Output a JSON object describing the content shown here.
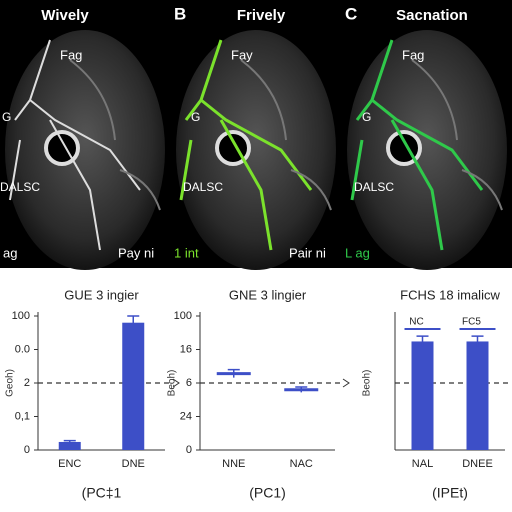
{
  "panels": [
    {
      "title": "Wively",
      "label_top": "Fag",
      "label_g": "G",
      "label_mid": "DALSC",
      "label_left": "ag",
      "label_right": "Pay ni"
    },
    {
      "letter": "B",
      "title": "Frively",
      "label_top": "Fay",
      "label_g": "G",
      "label_mid": "DALSC",
      "label_left": "1 int",
      "label_right": "Pair ni"
    },
    {
      "letter": "C",
      "title": "Sacnation",
      "label_top": "Fag",
      "label_g": "G",
      "label_mid": "DALSC",
      "label_left": "L ag",
      "label_right": ""
    }
  ],
  "chart_data": [
    {
      "type": "bar",
      "title": "GUE 3 ingier",
      "ylabel": "Geoh)",
      "xlabel": "(PC‡1",
      "categories": [
        "ENC",
        "DNE"
      ],
      "values": [
        6,
        95
      ],
      "errors": [
        1,
        5
      ],
      "color": "#3d4fc7",
      "ylim": [
        0,
        100
      ],
      "yticks": [
        0,
        {
          "value": 25,
          "label": "0,1"
        },
        {
          "value": 50,
          "label": "2"
        },
        {
          "value": 75,
          "label": "0.0"
        },
        100
      ],
      "hline": 50
    },
    {
      "type": "errorbar",
      "title": "GNE 3 lingier",
      "ylabel": "Beoh)",
      "xlabel": "(PC1)",
      "categories": [
        "NNE",
        "NAC"
      ],
      "values": [
        57,
        45
      ],
      "errors": [
        3,
        2
      ],
      "color": "#3d4fc7",
      "ylim": [
        0,
        100
      ],
      "yticks": [
        0,
        {
          "value": 25,
          "label": "24"
        },
        {
          "value": 50,
          "label": "6"
        },
        {
          "value": 75,
          "label": "16"
        },
        100
      ],
      "hline": 50
    },
    {
      "type": "bar",
      "title": "FCHS 18 imalicw",
      "ylabel": "Beoh)",
      "xlabel": "(IPEt)",
      "categories": [
        "NAL",
        "DNEE"
      ],
      "values": [
        81,
        81
      ],
      "errors": [
        4,
        4
      ],
      "value_labels": [
        "NC",
        "FC5"
      ],
      "color": "#3d4fc7",
      "ylim": [
        0,
        100
      ],
      "yticks": [],
      "hline": 50
    }
  ]
}
